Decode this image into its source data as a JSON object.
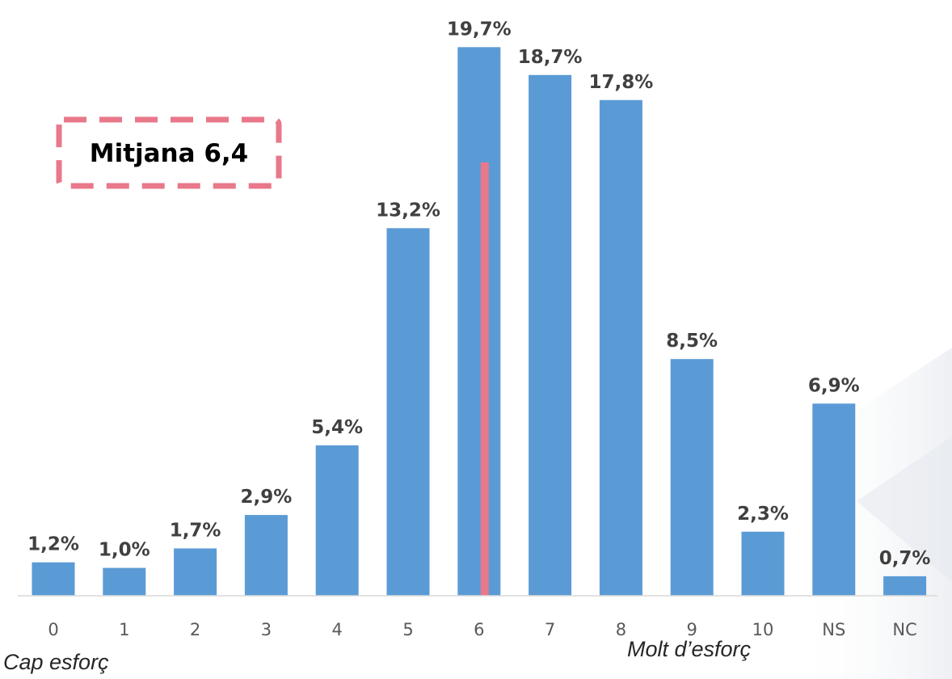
{
  "chart_data": {
    "type": "bar",
    "categories": [
      "0",
      "1",
      "2",
      "3",
      "4",
      "5",
      "6",
      "7",
      "8",
      "9",
      "10",
      "NS",
      "NC"
    ],
    "values": [
      1.2,
      1.0,
      1.7,
      2.9,
      5.4,
      13.2,
      19.7,
      18.7,
      17.8,
      8.5,
      2.3,
      6.9,
      0.7
    ],
    "value_labels": [
      "1,2%",
      "1,0%",
      "1,7%",
      "2,9%",
      "5,4%",
      "13,2%",
      "19,7%",
      "18,7%",
      "17,8%",
      "8,5%",
      "2,3%",
      "6,9%",
      "0,7%"
    ],
    "bar_color": "#5B9BD5",
    "mean": 6.4,
    "mean_line_color": "#E8788A",
    "mean_label": "Mitjana 6,4",
    "x_start_label": "Cap esforç",
    "x_end_label": "Molt d’esforç",
    "ylim": [
      0,
      20
    ],
    "grid": false,
    "legend": "none"
  }
}
